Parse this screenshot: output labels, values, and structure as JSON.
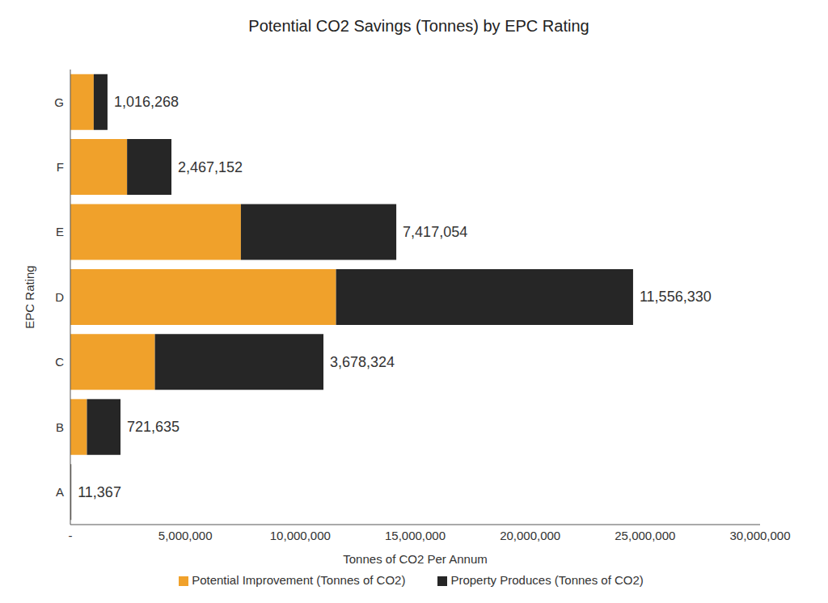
{
  "chart_data": {
    "type": "bar",
    "title": "Potential CO2 Savings (Tonnes) by EPC Rating",
    "x_label": "Tonnes of CO2 Per Annum",
    "y_label": "EPC Rating",
    "orientation": "horizontal",
    "stacked": true,
    "grid": false,
    "legend": "bottom",
    "data_labels": true,
    "categories": [
      "G",
      "F",
      "E",
      "D",
      "C",
      "B",
      "A"
    ],
    "series": [
      {
        "name": "Potential Improvement (Tonnes of CO2)",
        "color": "#f0a12b",
        "values": [
          1016268,
          2467152,
          7417054,
          11556330,
          3678324,
          721635,
          11367
        ],
        "value_labels": [
          "1,016,268",
          "2,467,152",
          "7,417,054",
          "11,556,330",
          "3,678,324",
          "721,635",
          "11,367"
        ]
      },
      {
        "name": "Property Produces (Tonnes of CO2)",
        "color": "#262626",
        "values": [
          600000,
          1930000,
          6760000,
          12920000,
          7330000,
          1460000,
          30000
        ]
      }
    ],
    "xlim": [
      0,
      30000000
    ],
    "xticks": [
      {
        "value": 0,
        "label": "-"
      },
      {
        "value": 5000000,
        "label": "5,000,000"
      },
      {
        "value": 10000000,
        "label": "10,000,000"
      },
      {
        "value": 15000000,
        "label": "15,000,000"
      },
      {
        "value": 20000000,
        "label": "20,000,000"
      },
      {
        "value": 25000000,
        "label": "25,000,000"
      },
      {
        "value": 30000000,
        "label": "30,000,000"
      }
    ]
  }
}
